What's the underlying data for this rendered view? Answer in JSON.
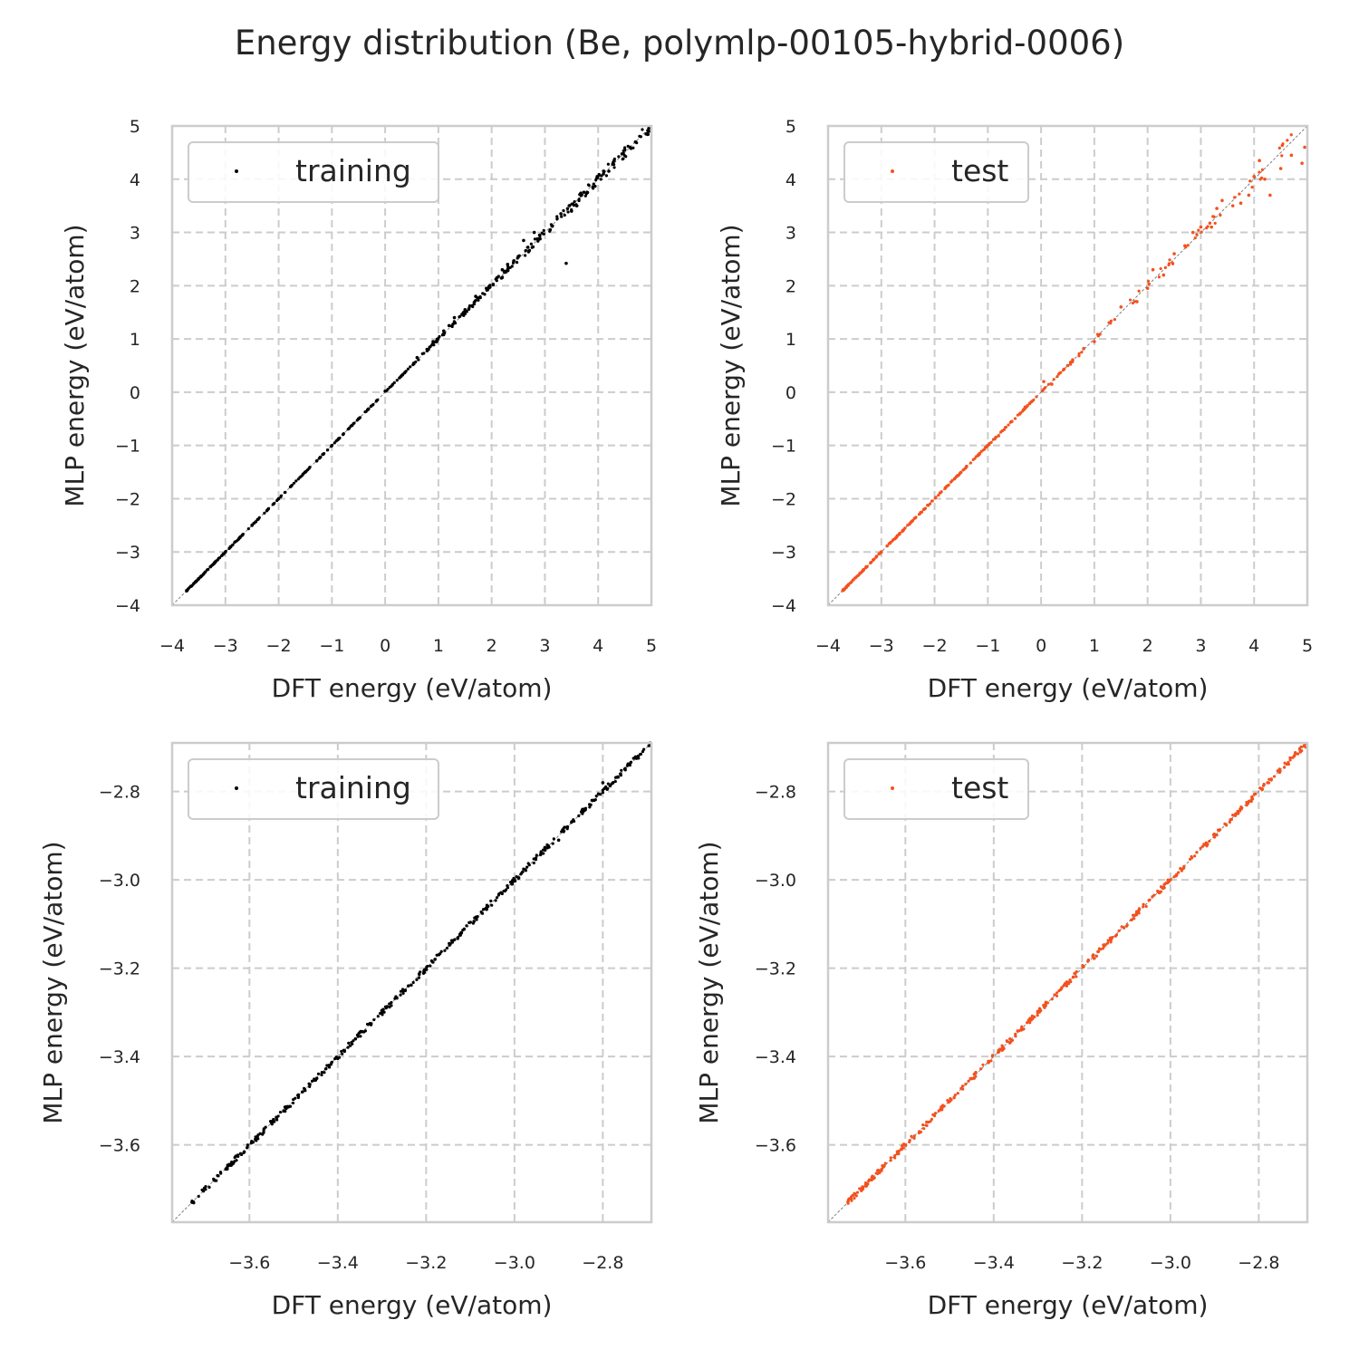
{
  "title": "Energy distribution (Be, polymlp-00105-hybrid-0006)",
  "colors": {
    "training": "#000000",
    "test": "#f4511e",
    "grid": "#cccccc",
    "axes_edge": "#cccccc",
    "diagonal": "#808080",
    "text": "#262626"
  },
  "chart_data": [
    {
      "type": "scatter",
      "panel": "top-left",
      "xlabel": "DFT energy (eV/atom)",
      "ylabel": "MLP energy (eV/atom)",
      "xlim": [
        -4,
        5
      ],
      "ylim": [
        -4,
        5
      ],
      "xticks": [
        -4,
        -3,
        -2,
        -1,
        0,
        1,
        2,
        3,
        4,
        5
      ],
      "yticks": [
        -4,
        -3,
        -2,
        -1,
        0,
        1,
        2,
        3,
        4,
        5
      ],
      "grid": true,
      "legend": "upper-left",
      "diagonal": true,
      "series": [
        {
          "name": "training",
          "color": "#000000",
          "points": [
            [
              -3.72,
              -3.72
            ],
            [
              -3.5,
              -3.5
            ],
            [
              -3.2,
              -3.2
            ],
            [
              -2.9,
              -2.9
            ],
            [
              -2.5,
              -2.5
            ],
            [
              -2.0,
              -2.0
            ],
            [
              -1.5,
              -1.5
            ],
            [
              -1.0,
              -1.0
            ],
            [
              -0.5,
              -0.5
            ],
            [
              0.0,
              0.02
            ],
            [
              0.3,
              0.3
            ],
            [
              0.6,
              0.65
            ],
            [
              0.9,
              0.95
            ],
            [
              1.1,
              1.15
            ],
            [
              1.3,
              1.4
            ],
            [
              1.5,
              1.55
            ],
            [
              1.7,
              1.8
            ],
            [
              1.9,
              1.95
            ],
            [
              2.1,
              2.15
            ],
            [
              2.3,
              2.4
            ],
            [
              2.5,
              2.55
            ],
            [
              2.7,
              2.65
            ],
            [
              2.6,
              2.85
            ],
            [
              2.9,
              2.95
            ],
            [
              3.1,
              3.05
            ],
            [
              3.3,
              3.35
            ],
            [
              3.4,
              2.42
            ],
            [
              3.6,
              3.5
            ],
            [
              3.8,
              3.75
            ],
            [
              3.9,
              3.85
            ],
            [
              4.1,
              4.1
            ],
            [
              4.3,
              4.35
            ],
            [
              4.5,
              4.55
            ],
            [
              4.7,
              4.7
            ],
            [
              4.9,
              4.85
            ],
            [
              4.95,
              4.95
            ],
            [
              2.2,
              2.3
            ],
            [
              2.8,
              3.0
            ],
            [
              3.5,
              3.4
            ],
            [
              4.2,
              4.15
            ],
            [
              4.6,
              4.6
            ],
            [
              1.2,
              1.25
            ]
          ]
        }
      ]
    },
    {
      "type": "scatter",
      "panel": "top-right",
      "xlabel": "DFT energy (eV/atom)",
      "ylabel": "MLP energy (eV/atom)",
      "xlim": [
        -4,
        5
      ],
      "ylim": [
        -4,
        5
      ],
      "xticks": [
        -4,
        -3,
        -2,
        -1,
        0,
        1,
        2,
        3,
        4,
        5
      ],
      "yticks": [
        -4,
        -3,
        -2,
        -1,
        0,
        1,
        2,
        3,
        4,
        5
      ],
      "grid": true,
      "legend": "upper-left",
      "diagonal": true,
      "series": [
        {
          "name": "test",
          "color": "#f4511e",
          "points": [
            [
              -3.72,
              -3.72
            ],
            [
              -3.4,
              -3.4
            ],
            [
              -3.0,
              -3.0
            ],
            [
              -2.6,
              -2.6
            ],
            [
              -2.2,
              -2.2
            ],
            [
              -1.8,
              -1.8
            ],
            [
              -1.4,
              -1.4
            ],
            [
              -1.0,
              -1.0
            ],
            [
              -0.8,
              -0.82
            ],
            [
              -0.3,
              -0.28
            ],
            [
              0.05,
              0.2
            ],
            [
              0.2,
              0.15
            ],
            [
              0.5,
              0.5
            ],
            [
              0.8,
              0.82
            ],
            [
              1.0,
              0.95
            ],
            [
              1.3,
              1.3
            ],
            [
              1.5,
              1.6
            ],
            [
              1.8,
              1.7
            ],
            [
              2.0,
              1.95
            ],
            [
              2.1,
              2.3
            ],
            [
              2.3,
              2.2
            ],
            [
              2.5,
              2.6
            ],
            [
              2.7,
              2.75
            ],
            [
              2.85,
              3.0
            ],
            [
              3.0,
              3.1
            ],
            [
              3.2,
              3.1
            ],
            [
              3.4,
              3.6
            ],
            [
              3.6,
              3.5
            ],
            [
              3.9,
              3.7
            ],
            [
              4.0,
              4.05
            ],
            [
              4.2,
              4.0
            ],
            [
              4.3,
              3.7
            ],
            [
              4.5,
              4.2
            ],
            [
              4.7,
              4.45
            ],
            [
              4.9,
              4.3
            ],
            [
              4.95,
              4.6
            ],
            [
              3.3,
              3.45
            ],
            [
              3.75,
              3.55
            ],
            [
              4.1,
              4.35
            ]
          ]
        }
      ]
    },
    {
      "type": "scatter",
      "panel": "bottom-left",
      "xlabel": "DFT energy (eV/atom)",
      "ylabel": "MLP energy (eV/atom)",
      "xlim": [
        -3.775,
        -2.69
      ],
      "ylim": [
        -3.775,
        -2.69
      ],
      "xticks": [
        -3.6,
        -3.4,
        -3.2,
        -3.0,
        -2.8
      ],
      "yticks": [
        -3.6,
        -3.4,
        -3.2,
        -3.0,
        -2.8
      ],
      "xtick_labels": [
        "−3.6",
        "−3.4",
        "−3.2",
        "−3.0",
        "−2.8"
      ],
      "ytick_labels": [
        "−3.6",
        "−3.4",
        "−3.2",
        "−3.0",
        "−2.8"
      ],
      "grid": true,
      "legend": "upper-left",
      "diagonal": true,
      "series": [
        {
          "name": "training",
          "color": "#000000",
          "points": [
            [
              -3.73,
              -3.73
            ],
            [
              -3.68,
              -3.68
            ],
            [
              -3.62,
              -3.62
            ],
            [
              -3.55,
              -3.55
            ],
            [
              -3.48,
              -3.48
            ],
            [
              -3.42,
              -3.42
            ],
            [
              -3.36,
              -3.36
            ],
            [
              -3.3,
              -3.3
            ],
            [
              -3.24,
              -3.24
            ],
            [
              -3.18,
              -3.18
            ],
            [
              -3.12,
              -3.12
            ],
            [
              -3.06,
              -3.06
            ],
            [
              -3.0,
              -3.0
            ],
            [
              -2.94,
              -2.94
            ],
            [
              -2.88,
              -2.88
            ],
            [
              -2.82,
              -2.82
            ],
            [
              -2.76,
              -2.76
            ],
            [
              -2.72,
              -2.72
            ],
            [
              -2.8,
              -2.78
            ],
            [
              -2.9,
              -2.91
            ]
          ]
        }
      ]
    },
    {
      "type": "scatter",
      "panel": "bottom-right",
      "xlabel": "DFT energy (eV/atom)",
      "ylabel": "MLP energy (eV/atom)",
      "xlim": [
        -3.775,
        -2.69
      ],
      "ylim": [
        -3.775,
        -2.69
      ],
      "xticks": [
        -3.6,
        -3.4,
        -3.2,
        -3.0,
        -2.8
      ],
      "yticks": [
        -3.6,
        -3.4,
        -3.2,
        -3.0,
        -2.8
      ],
      "xtick_labels": [
        "−3.6",
        "−3.4",
        "−3.2",
        "−3.0",
        "−2.8"
      ],
      "ytick_labels": [
        "−3.6",
        "−3.4",
        "−3.2",
        "−3.0",
        "−2.8"
      ],
      "grid": true,
      "legend": "upper-left",
      "diagonal": true,
      "series": [
        {
          "name": "test",
          "color": "#f4511e",
          "points": [
            [
              -3.73,
              -3.73
            ],
            [
              -3.66,
              -3.66
            ],
            [
              -3.6,
              -3.6
            ],
            [
              -3.52,
              -3.52
            ],
            [
              -3.45,
              -3.45
            ],
            [
              -3.38,
              -3.38
            ],
            [
              -3.3,
              -3.3
            ],
            [
              -3.22,
              -3.22
            ],
            [
              -3.15,
              -3.15
            ],
            [
              -3.08,
              -3.08
            ],
            [
              -3.0,
              -3.0
            ],
            [
              -2.92,
              -2.92
            ],
            [
              -2.85,
              -2.85
            ],
            [
              -2.78,
              -2.78
            ],
            [
              -2.72,
              -2.72
            ]
          ]
        }
      ]
    }
  ]
}
